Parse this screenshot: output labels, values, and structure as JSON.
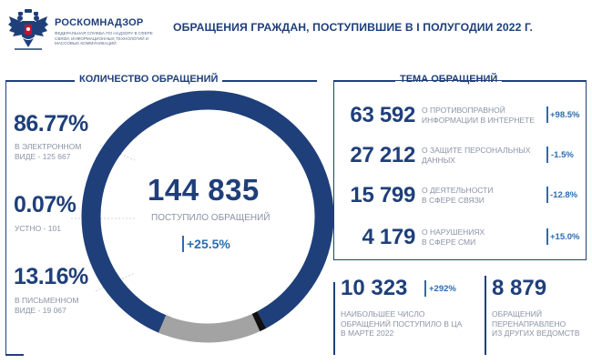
{
  "colors": {
    "navy": "#1f3f7a",
    "accent_blue": "#2b6cb0",
    "gray": "#a3a3a3",
    "black": "#111111",
    "label_gray": "#8a93a6"
  },
  "header": {
    "org_name": "РОСКОМНАДЗОР",
    "org_subtitle": "ФЕДЕРАЛЬНАЯ СЛУЖБА ПО НАДЗОРУ В СФЕРЕ СВЯЗИ, ИНФОРМАЦИОННЫХ ТЕХНОЛОГИЙ И МАССОВЫХ КОММУНИКАЦИЙ",
    "emblem_icon": "double-headed-eagle-icon",
    "title": "ОБРАЩЕНИЯ ГРАЖДАН, ПОСТУПИВШИЕ В I ПОЛУГОДИИ 2022 Г."
  },
  "left": {
    "heading": "КОЛИЧЕСТВО ОБРАЩЕНИЙ",
    "total": "144 835",
    "total_label": "ПОСТУПИЛО ОБРАЩЕНИЙ",
    "growth": "+25.5%",
    "items": [
      {
        "percent": "86.77%",
        "label_line1": "В ЭЛЕКТРОННОМ",
        "label_line2": "ВИДЕ - 125 667"
      },
      {
        "percent": "0.07%",
        "label_line1": "УСТНО - 101",
        "label_line2": ""
      },
      {
        "percent": "13.16%",
        "label_line1": "В ПИСЬМЕННОМ",
        "label_line2": "ВИДЕ - 19 067"
      }
    ]
  },
  "chart_data": {
    "type": "pie",
    "title": "КОЛИЧЕСТВО ОБРАЩЕНИЙ",
    "categories": [
      "В ЭЛЕКТРОННОМ ВИДЕ",
      "УСТНО",
      "В ПИСЬМЕННОМ ВИДЕ"
    ],
    "values": [
      125667,
      101,
      19067
    ],
    "percentages": [
      86.77,
      0.07,
      13.16
    ],
    "total": 144835,
    "colors": [
      "#1f3f7a",
      "#111111",
      "#a3a3a3"
    ],
    "donut": true
  },
  "right": {
    "heading": "ТЕМА ОБРАЩЕНИЙ",
    "topics": [
      {
        "value": "63 592",
        "desc_line1": "О ПРОТИВОПРАВНОЙ",
        "desc_line2": "ИНФОРМАЦИИ В ИНТЕРНЕТЕ",
        "change": "+98.5%"
      },
      {
        "value": "27 212",
        "desc_line1": "О ЗАЩИТЕ ПЕРСОНАЛЬНЫХ",
        "desc_line2": "ДАННЫХ",
        "change": "-1.5%"
      },
      {
        "value": "15 799",
        "desc_line1": "О ДЕЯТЕЛЬНОСТИ",
        "desc_line2": "В СФЕРЕ СВЯЗИ",
        "change": "-12.8%"
      },
      {
        "value": "4 179",
        "desc_line1": "О НАРУШЕНИЯХ",
        "desc_line2": "В СФЕРЕ СМИ",
        "change": "+15.0%"
      }
    ],
    "march": {
      "value": "10 323",
      "change": "+292%",
      "label_line1": "НАИБОЛЬШЕЕ ЧИСЛО",
      "label_line2": "ОБРАЩЕНИЙ ПОСТУПИЛО В ЦА",
      "label_line3": "В МАРТЕ 2022"
    },
    "redirected": {
      "value": "8 879",
      "label_line1": "ОБРАЩЕНИЙ",
      "label_line2": "ПЕРЕНАПРАВЛЕНО",
      "label_line3": "ИЗ ДРУГИХ ВЕДОМСТВ"
    }
  }
}
